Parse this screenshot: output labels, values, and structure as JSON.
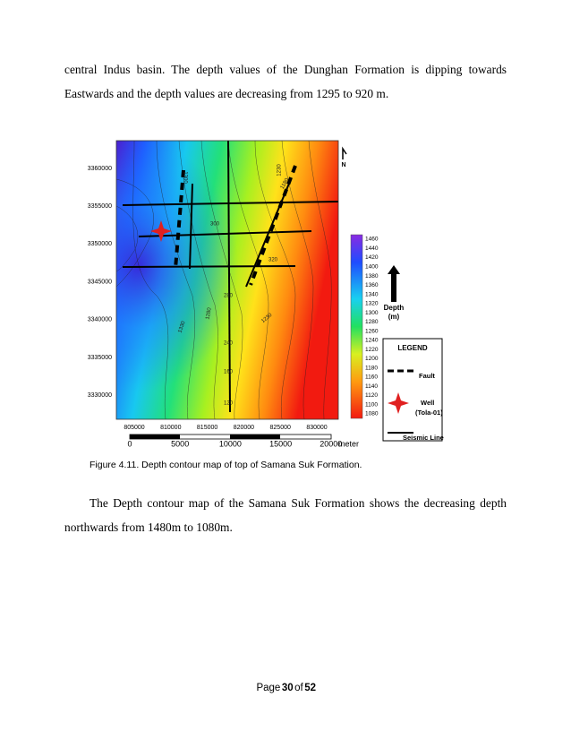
{
  "body": {
    "paragraph_1": "central Indus basin. The depth values of the Dunghan Formation is dipping towards Eastwards and the depth values are decreasing from 1295 to 920 m.",
    "figure": {
      "y_axis_labels": [
        "3360000",
        "3355000",
        "3350000",
        "3345000",
        "3340000",
        "3335000",
        "3330000"
      ],
      "x_axis_labels": [
        "805000",
        "810000",
        "815000",
        "820000",
        "825000",
        "830000"
      ],
      "contour_labels": [
        "1300",
        "1230",
        "1180",
        "1330",
        "1280",
        "1230",
        "160",
        "120",
        "240",
        "280",
        "300",
        "320"
      ],
      "north": "N",
      "colorbar_title": [
        "Depth",
        "(m)"
      ],
      "colorbar_labels": [
        1460,
        1440,
        1420,
        1400,
        1380,
        1360,
        1340,
        1320,
        1300,
        1280,
        1260,
        1240,
        1220,
        1200,
        1180,
        1160,
        1140,
        1120,
        1100,
        1080
      ],
      "legend": {
        "title": "LEGEND",
        "fault": "Fault",
        "well": "Well",
        "well_name": "(Tola-01)",
        "seismic": "Seismic Line"
      },
      "scale_labels": [
        "0",
        "5000",
        "10000",
        "15000",
        "20000"
      ],
      "scale_unit": "meter"
    },
    "caption": "Figure 4.11. Depth contour map of top of Samana Suk Formation.",
    "paragraph_2": "The Depth contour map of the Samana Suk Formation shows the decreasing depth northwards from 1480m to 1080m."
  },
  "footer": {
    "page_word": "Page",
    "page": "30",
    "of_word": "of",
    "total": "52"
  }
}
